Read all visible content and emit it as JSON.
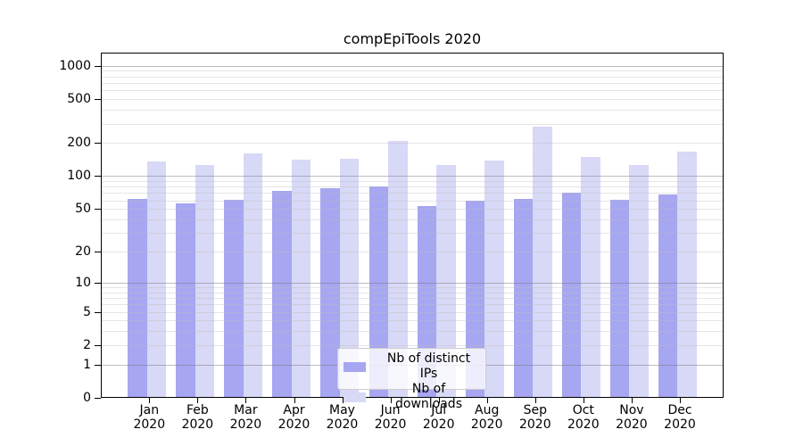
{
  "chart_data": {
    "type": "bar",
    "title": "compEpiTools 2020",
    "categories": [
      "Jan 2020",
      "Feb 2020",
      "Mar 2020",
      "Apr 2020",
      "May 2020",
      "Jun 2020",
      "Jul 2020",
      "Aug 2020",
      "Sep 2020",
      "Oct 2020",
      "Nov 2020",
      "Dec 2020"
    ],
    "series": [
      {
        "name": "Nb of distinct IPs",
        "color": "#a6a6f1",
        "values": [
          62,
          56,
          61,
          73,
          77,
          81,
          53,
          60,
          62,
          71,
          61,
          68
        ]
      },
      {
        "name": "Nb of downloads",
        "color": "#d8d8f7",
        "values": [
          135,
          125,
          160,
          142,
          143,
          210,
          125,
          139,
          282,
          148,
          126,
          168
        ]
      }
    ],
    "xlabel": "",
    "ylabel": "",
    "y_scale": "log1p",
    "ylim": [
      0,
      1300
    ],
    "y_ticks": [
      0,
      1,
      2,
      5,
      10,
      20,
      50,
      100,
      200,
      500,
      1000
    ],
    "y_major_gridlines": [
      1,
      10,
      100,
      1000
    ],
    "y_minor_gridlines": [
      2,
      3,
      4,
      5,
      6,
      7,
      8,
      9,
      20,
      30,
      40,
      50,
      60,
      70,
      80,
      90,
      200,
      300,
      400,
      500,
      600,
      700,
      800,
      900
    ],
    "grid": true,
    "legend_position": "lower-center",
    "colors": {
      "axis": "#000000",
      "major_grid": "rgba(110,110,110,0.45)",
      "minor_grid": "rgba(190,190,190,0.40)",
      "background": "#ffffff",
      "legend_border": "#cccccc"
    }
  }
}
